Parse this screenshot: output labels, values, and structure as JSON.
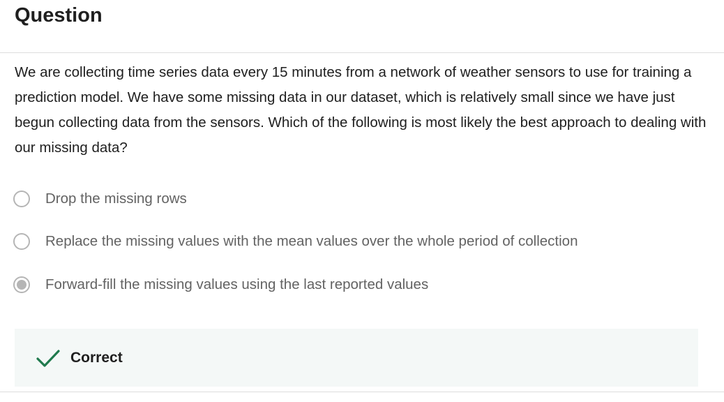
{
  "question": {
    "title": "Question",
    "text": "We are collecting time series data every 15 minutes from a network of weather sensors to use for training a prediction model.  We have some missing data in our dataset, which is relatively small since we have just begun collecting data from the sensors.  Which of the following is most likely the best approach to dealing with our missing data?",
    "options": [
      {
        "label": "Drop the missing rows",
        "selected": false
      },
      {
        "label": "Replace the missing values with the mean values over the whole period of collection",
        "selected": false
      },
      {
        "label": "Forward-fill the missing values using the last reported values",
        "selected": true
      }
    ]
  },
  "feedback": {
    "label": "Correct",
    "icon": "checkmark-icon",
    "icon_color": "#1f7a4d"
  }
}
